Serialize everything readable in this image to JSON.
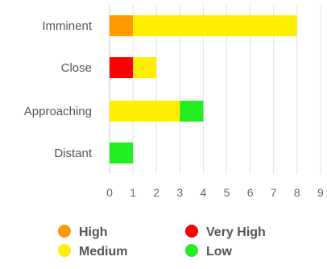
{
  "chart_data": {
    "type": "bar",
    "orientation": "horizontal",
    "stacked": true,
    "categories": [
      "Imminent",
      "Close",
      "Approaching",
      "Distant"
    ],
    "series": [
      {
        "name": "Very High",
        "color": "#ff0000",
        "values": [
          0,
          1,
          0,
          0
        ]
      },
      {
        "name": "High",
        "color": "#ff9900",
        "values": [
          1,
          0,
          0,
          0
        ]
      },
      {
        "name": "Medium",
        "color": "#ffee00",
        "values": [
          7,
          1,
          3,
          0
        ]
      },
      {
        "name": "Low",
        "color": "#22ee22",
        "values": [
          0,
          0,
          1,
          1
        ]
      }
    ],
    "xlim": [
      0,
      9
    ],
    "xticks": [
      "0",
      "1",
      "2",
      "3",
      "4",
      "5",
      "6",
      "7",
      "8",
      "9"
    ],
    "grid": true,
    "legend_position": "bottom",
    "legend_order": [
      "High",
      "Very High",
      "Medium",
      "Low"
    ]
  }
}
